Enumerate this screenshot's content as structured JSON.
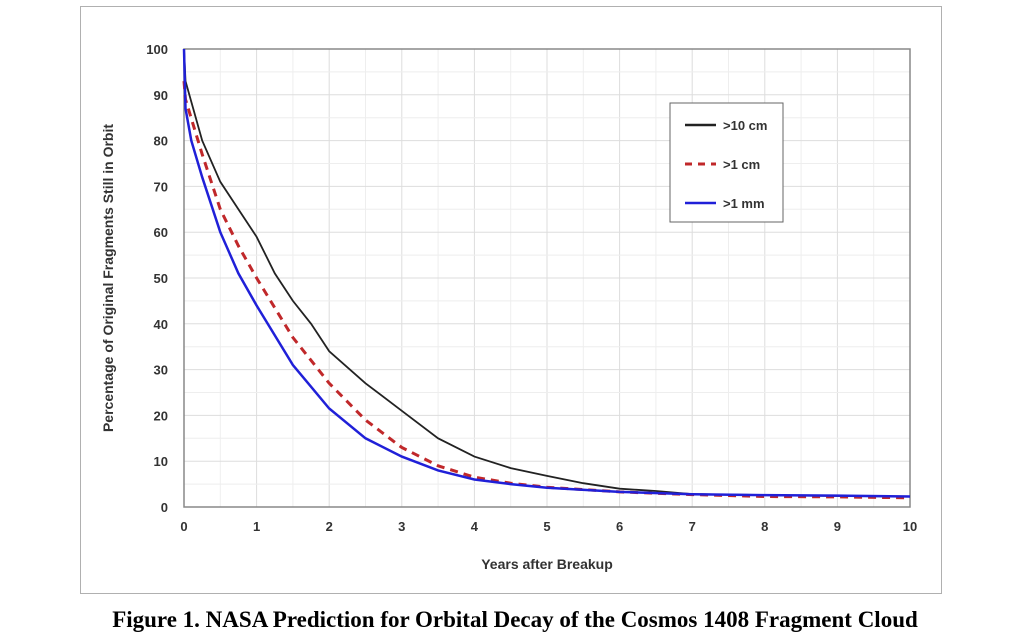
{
  "chart_data": {
    "type": "line",
    "title": "",
    "xlabel": "Years after Breakup",
    "ylabel": "Percentage of Original Fragments Still in Orbit",
    "xlim": [
      0,
      10
    ],
    "ylim": [
      0,
      100
    ],
    "xticks": [
      "0",
      "1",
      "2",
      "3",
      "4",
      "5",
      "6",
      "7",
      "8",
      "9",
      "10"
    ],
    "yticks": [
      "0",
      "10",
      "20",
      "30",
      "40",
      "50",
      "60",
      "70",
      "80",
      "90",
      "100"
    ],
    "grid": true,
    "legend_position": "top-right",
    "series": [
      {
        "name": ">10 cm",
        "color": "#222222",
        "style": "solid",
        "x": [
          0,
          0.02,
          0.25,
          0.5,
          0.75,
          1,
          1.25,
          1.5,
          1.75,
          2,
          2.5,
          3,
          3.5,
          4,
          4.5,
          5,
          5.5,
          6,
          6.5,
          7,
          8,
          9,
          10
        ],
        "y": [
          100,
          93,
          80,
          71,
          65,
          59,
          51,
          45,
          40,
          34,
          27,
          21,
          15,
          11,
          8.5,
          6.8,
          5.2,
          4,
          3.5,
          2.8,
          2.6,
          2.4,
          2.3
        ]
      },
      {
        "name": ">1 cm",
        "color": "#c0282a",
        "style": "dashed",
        "x": [
          0,
          0.02,
          0.25,
          0.5,
          0.75,
          1,
          1.5,
          2,
          2.5,
          3,
          3.5,
          4,
          4.5,
          5,
          6,
          7,
          8,
          9,
          10
        ],
        "y": [
          93,
          89,
          77,
          65,
          57,
          50,
          37,
          27,
          19,
          13,
          9,
          6.5,
          5.2,
          4.3,
          3.3,
          2.7,
          2.3,
          2.2,
          2.0
        ]
      },
      {
        "name": ">1 mm",
        "color": "#2020d8",
        "style": "solid",
        "x": [
          0,
          0.02,
          0.1,
          0.25,
          0.5,
          0.75,
          1,
          1.5,
          2,
          2.5,
          3,
          3.5,
          4,
          4.5,
          5,
          6,
          7,
          8,
          9,
          10
        ],
        "y": [
          100,
          87,
          80,
          72,
          60,
          51,
          44,
          31,
          21.5,
          15,
          11,
          8,
          6,
          5,
          4.2,
          3.3,
          2.8,
          2.6,
          2.5,
          2.3
        ]
      }
    ]
  },
  "caption": "Figure 1.  NASA Prediction for Orbital Decay of the Cosmos 1408 Fragment Cloud"
}
